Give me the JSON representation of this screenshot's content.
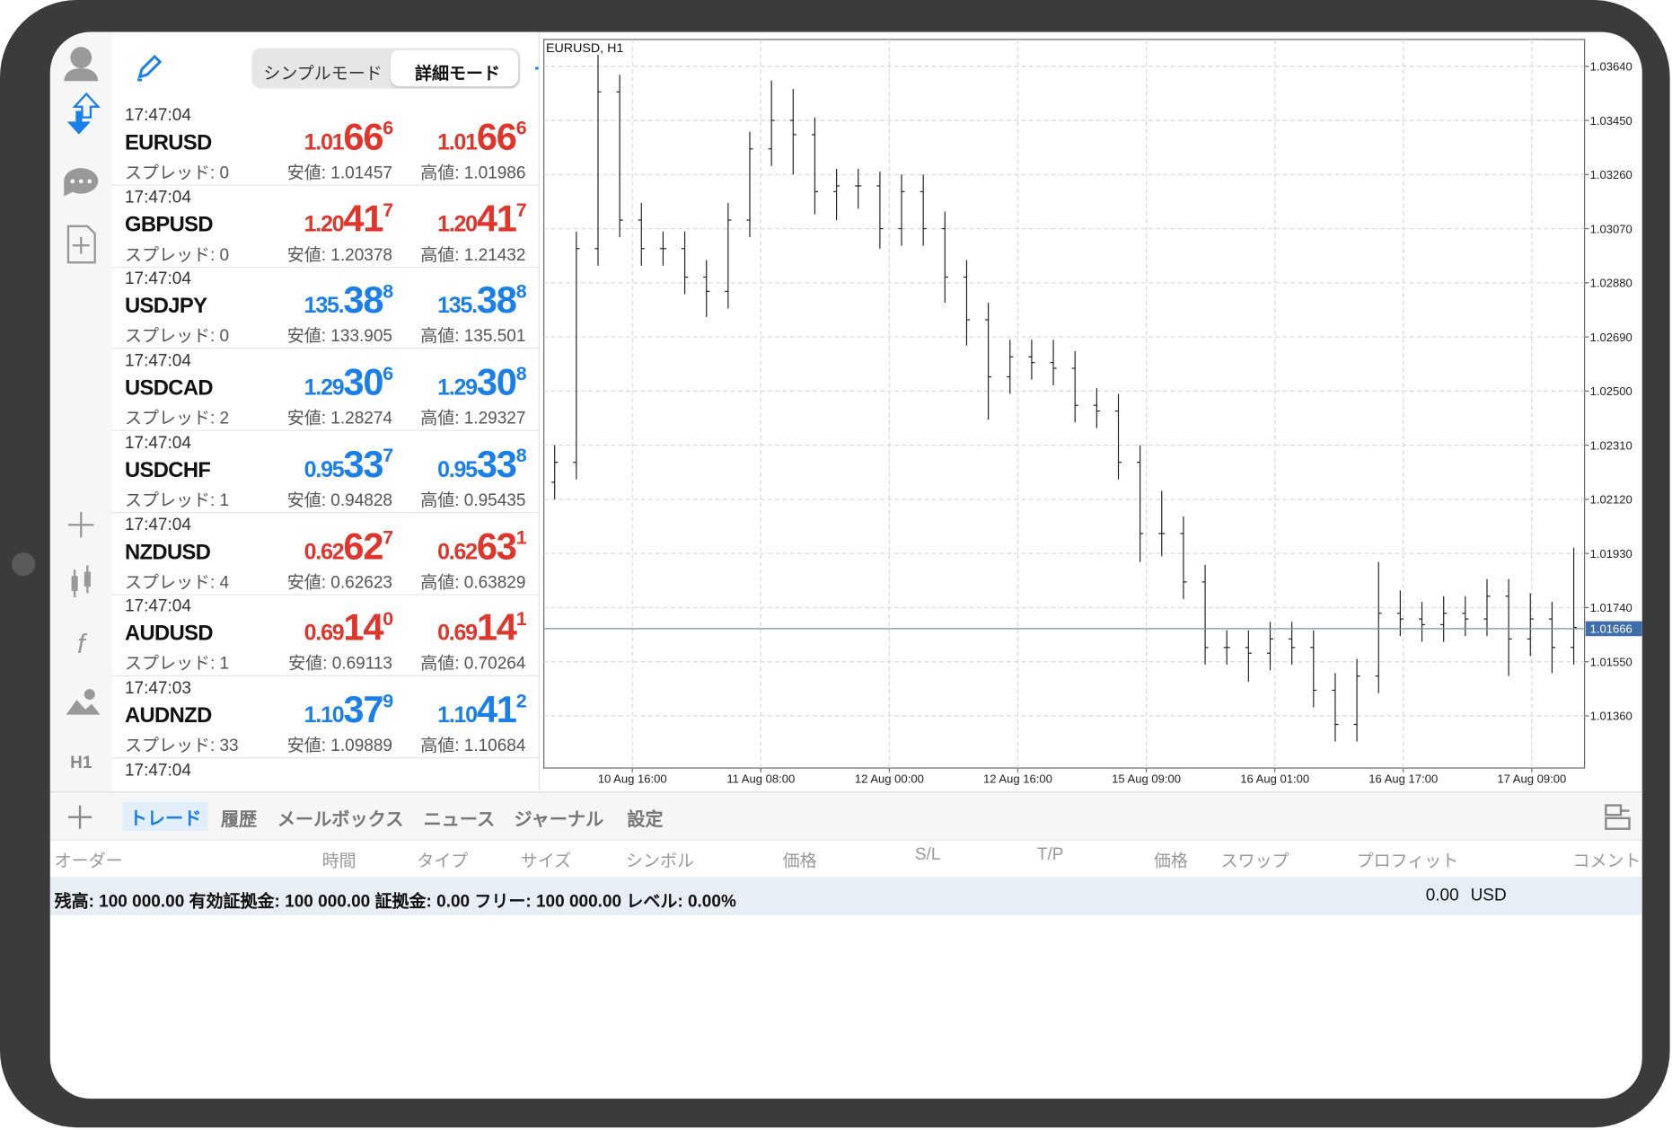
{
  "toolbar": {
    "modes": [
      "シンプルモード",
      "詳細モード"
    ]
  },
  "sidebar": {
    "timeframe": "H1"
  },
  "quotes": [
    {
      "time": "17:47:04",
      "symbol": "EURUSD",
      "color": "#e0352b",
      "bid": [
        "1.01",
        "66",
        "6"
      ],
      "ask": [
        "1.01",
        "66",
        "6"
      ],
      "spread": "スプレッド: 0",
      "low": "安値: 1.01457",
      "high": "高値: 1.01986"
    },
    {
      "time": "17:47:04",
      "symbol": "GBPUSD",
      "color": "#e0352b",
      "bid": [
        "1.20",
        "41",
        "7"
      ],
      "ask": [
        "1.20",
        "41",
        "7"
      ],
      "spread": "スプレッド: 0",
      "low": "安値: 1.20378",
      "high": "高値: 1.21432"
    },
    {
      "time": "17:47:04",
      "symbol": "USDJPY",
      "color": "#1a7fe8",
      "bid": [
        "135.",
        "38",
        "8"
      ],
      "ask": [
        "135.",
        "38",
        "8"
      ],
      "spread": "スプレッド: 0",
      "low": "安値: 133.905",
      "high": "高値: 135.501"
    },
    {
      "time": "17:47:04",
      "symbol": "USDCAD",
      "color": "#1a7fe8",
      "bid": [
        "1.29",
        "30",
        "6"
      ],
      "ask": [
        "1.29",
        "30",
        "8"
      ],
      "spread": "スプレッド: 2",
      "low": "安値: 1.28274",
      "high": "高値: 1.29327"
    },
    {
      "time": "17:47:04",
      "symbol": "USDCHF",
      "color": "#1a7fe8",
      "bid": [
        "0.95",
        "33",
        "7"
      ],
      "ask": [
        "0.95",
        "33",
        "8"
      ],
      "spread": "スプレッド: 1",
      "low": "安値: 0.94828",
      "high": "高値: 0.95435"
    },
    {
      "time": "17:47:04",
      "symbol": "NZDUSD",
      "color": "#e0352b",
      "bid": [
        "0.62",
        "62",
        "7"
      ],
      "ask": [
        "0.62",
        "63",
        "1"
      ],
      "spread": "スプレッド: 4",
      "low": "安値: 0.62623",
      "high": "高値: 0.63829"
    },
    {
      "time": "17:47:04",
      "symbol": "AUDUSD",
      "color": "#e0352b",
      "bid": [
        "0.69",
        "14",
        "0"
      ],
      "ask": [
        "0.69",
        "14",
        "1"
      ],
      "spread": "スプレッド: 1",
      "low": "安値: 0.69113",
      "high": "高値: 0.70264"
    },
    {
      "time": "17:47:03",
      "symbol": "AUDNZD",
      "color": "#1a7fe8",
      "bid": [
        "1.10",
        "37",
        "9"
      ],
      "ask": [
        "1.10",
        "41",
        "2"
      ],
      "spread": "スプレッド: 33",
      "low": "安値: 1.09889",
      "high": "高値: 1.10684"
    },
    {
      "time": "17:47:04"
    }
  ],
  "chart_data": {
    "type": "ohlc",
    "title": "EURUSD, H1",
    "color": "#222222",
    "grid": true,
    "xtick_labels": [
      "10 Aug 16:00",
      "11 Aug 08:00",
      "12 Aug 00:00",
      "12 Aug 16:00",
      "15 Aug 09:00",
      "16 Aug 01:00",
      "16 Aug 17:00",
      "17 Aug 09:00"
    ],
    "ylim": [
      1.01177,
      1.03734
    ],
    "yticks": [
      {
        "value": 1.0364,
        "label": "1.03640"
      },
      {
        "value": 1.0345,
        "label": "1.03450"
      },
      {
        "value": 1.0326,
        "label": "1.03260"
      },
      {
        "value": 1.0307,
        "label": "1.03070"
      },
      {
        "value": 1.0288,
        "label": "1.02880"
      },
      {
        "value": 1.0269,
        "label": "1.02690"
      },
      {
        "value": 1.025,
        "label": "1.02500"
      },
      {
        "value": 1.0231,
        "label": "1.02310"
      },
      {
        "value": 1.0212,
        "label": "1.02120"
      },
      {
        "value": 1.0193,
        "label": "1.01930"
      },
      {
        "value": 1.0174,
        "label": "1.01740"
      },
      {
        "value": 1.0155,
        "label": "1.01550"
      },
      {
        "value": 1.0136,
        "label": "1.01360"
      }
    ],
    "current_price": 1.01666,
    "values": [
      [
        1.0218,
        1.0231,
        1.0212,
        1.0225
      ],
      [
        1.0225,
        1.0306,
        1.0219,
        1.03
      ],
      [
        1.03,
        1.0368,
        1.0294,
        1.0355
      ],
      [
        1.0355,
        1.0361,
        1.0304,
        1.031
      ],
      [
        1.031,
        1.0316,
        1.0294,
        1.03
      ],
      [
        1.03,
        1.0306,
        1.0294,
        1.03
      ],
      [
        1.03,
        1.0306,
        1.0284,
        1.029
      ],
      [
        1.029,
        1.0296,
        1.0276,
        1.0285
      ],
      [
        1.0285,
        1.0316,
        1.0279,
        1.031
      ],
      [
        1.031,
        1.0341,
        1.0304,
        1.0335
      ],
      [
        1.0335,
        1.0359,
        1.0329,
        1.0345
      ],
      [
        1.0345,
        1.0356,
        1.0326,
        1.034
      ],
      [
        1.034,
        1.0346,
        1.0312,
        1.032
      ],
      [
        1.032,
        1.0328,
        1.031,
        1.0322
      ],
      [
        1.0322,
        1.0328,
        1.0314,
        1.0322
      ],
      [
        1.0322,
        1.0327,
        1.03,
        1.0307
      ],
      [
        1.0307,
        1.0326,
        1.0301,
        1.032
      ],
      [
        1.032,
        1.0326,
        1.0301,
        1.0307
      ],
      [
        1.0307,
        1.0313,
        1.0281,
        1.029
      ],
      [
        1.029,
        1.0296,
        1.0266,
        1.0275
      ],
      [
        1.0275,
        1.0281,
        1.024,
        1.0255
      ],
      [
        1.0255,
        1.0268,
        1.0249,
        1.0262
      ],
      [
        1.0262,
        1.0268,
        1.0254,
        1.026
      ],
      [
        1.026,
        1.0268,
        1.0252,
        1.0258
      ],
      [
        1.0258,
        1.0264,
        1.0239,
        1.0245
      ],
      [
        1.0245,
        1.0251,
        1.0237,
        1.0243
      ],
      [
        1.0243,
        1.0249,
        1.0219,
        1.0225
      ],
      [
        1.0225,
        1.0231,
        1.019,
        1.02
      ],
      [
        1.02,
        1.0215,
        1.0192,
        1.02
      ],
      [
        1.02,
        1.0206,
        1.0177,
        1.0183
      ],
      [
        1.0183,
        1.0189,
        1.0154,
        1.016
      ],
      [
        1.016,
        1.0166,
        1.0154,
        1.016
      ],
      [
        1.016,
        1.0166,
        1.0148,
        1.0158
      ],
      [
        1.0158,
        1.0169,
        1.0152,
        1.0163
      ],
      [
        1.0163,
        1.0169,
        1.0154,
        1.016
      ],
      [
        1.016,
        1.0166,
        1.0139,
        1.0145
      ],
      [
        1.0145,
        1.0151,
        1.0127,
        1.0133
      ],
      [
        1.0133,
        1.0156,
        1.0127,
        1.015
      ],
      [
        1.015,
        1.019,
        1.0144,
        1.0172
      ],
      [
        1.0172,
        1.018,
        1.0164,
        1.017
      ],
      [
        1.017,
        1.0176,
        1.0162,
        1.0168
      ],
      [
        1.0168,
        1.0178,
        1.0162,
        1.0172
      ],
      [
        1.0172,
        1.0178,
        1.0164,
        1.017
      ],
      [
        1.017,
        1.0184,
        1.0164,
        1.0178
      ],
      [
        1.0178,
        1.0184,
        1.015,
        1.0163
      ],
      [
        1.0163,
        1.0179,
        1.0157,
        1.017
      ],
      [
        1.017,
        1.0176,
        1.0151,
        1.016
      ],
      [
        1.016,
        1.0195,
        1.0154,
        1.0167
      ]
    ]
  },
  "tabs": [
    "トレード",
    "履歴",
    "メールボックス",
    "ニュース",
    "ジャーナル",
    "設定"
  ],
  "table": {
    "columns": [
      "オーダー",
      "時間",
      "タイプ",
      "サイズ",
      "シンボル",
      "価格",
      "S/L",
      "T/P",
      "価格",
      "スワップ",
      "プロフィット",
      "コメント"
    ],
    "summary": "残高: 100 000.00 有効証拠金: 100 000.00 証拠金: 0.00 フリー: 100 000.00 レベル: 0.00%",
    "total": "0.00",
    "currency": "USD"
  }
}
